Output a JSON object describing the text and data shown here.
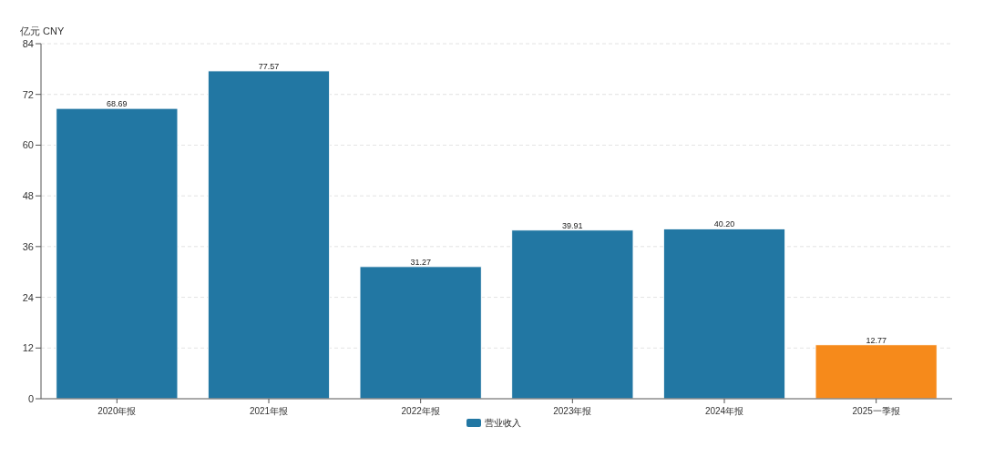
{
  "chart_data": {
    "type": "bar",
    "ylabel": "亿元  CNY",
    "categories": [
      "2020年报",
      "2021年报",
      "2022年报",
      "2023年报",
      "2024年报",
      "2025一季报"
    ],
    "series": [
      {
        "name": "营业收入",
        "color": "#2277a3",
        "colors": [
          "#2277a3",
          "#2277a3",
          "#2277a3",
          "#2277a3",
          "#2277a3",
          "#f68a1b"
        ],
        "values": [
          68.69,
          77.57,
          31.27,
          39.91,
          40.2,
          12.77
        ],
        "value_labels": [
          "68.69",
          "77.57",
          "31.27",
          "39.91",
          "40.20",
          "12.77"
        ]
      }
    ],
    "ylim": [
      0,
      84
    ],
    "yticks": [
      0,
      12,
      24,
      36,
      48,
      60,
      72,
      84
    ],
    "grid": "y",
    "legend": "bottom"
  }
}
